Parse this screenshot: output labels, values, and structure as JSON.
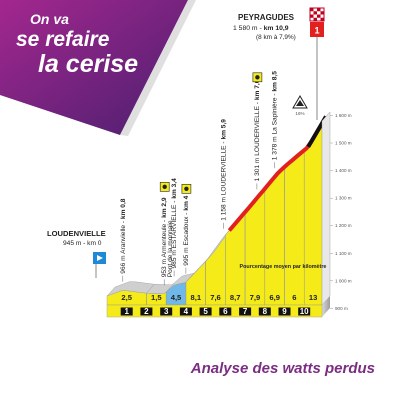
{
  "brand": {
    "line1": "On va",
    "line2": "se refaire",
    "line3": "la cerise"
  },
  "finish": {
    "name": "PEYRAGUDES",
    "alt_km_prefix": "1 580 m - ",
    "alt_km_bold": "km 10,9",
    "note": "(8 km à 7,9%)",
    "stage_number": "1"
  },
  "start": {
    "name": "LOUDENVIELLE",
    "detail": "945 m - km 0"
  },
  "waypoints": [
    {
      "text": "966 m Aranvielle - ",
      "bold": "km 0,8",
      "km": 0.8,
      "alt": 966,
      "sprint": false
    },
    {
      "text": "953 m Armenteule - ",
      "bold": "km 2,9",
      "sub": "Pont de la monnaie",
      "km": 2.9,
      "alt": 953,
      "sprint": true
    },
    {
      "text": "985 m ESTARVIELLE - ",
      "bold": "km 3,4",
      "km": 3.4,
      "alt": 985,
      "sprint": false
    },
    {
      "text": "995 m Escadoux - ",
      "bold": "km 4",
      "km": 4.0,
      "alt": 995,
      "sprint": true
    },
    {
      "text": "1 158 m LOUDERVIELLE - ",
      "bold": "km 5,9",
      "km": 5.9,
      "alt": 1158,
      "sprint": false
    },
    {
      "text": "1 301 m LOUDERVIELLE - ",
      "bold": "km 7,6",
      "km": 7.6,
      "alt": 1301,
      "sprint": true
    },
    {
      "text": "1 378 m La Sapinière - ",
      "bold": "km 8,5",
      "km": 8.5,
      "alt": 1378,
      "sprint": false
    }
  ],
  "summit_pct": "16%",
  "caption": "Pourcentage moyen par kilomètre",
  "footer": "Analyse des watts perdus",
  "chart_data": {
    "type": "area",
    "title": "",
    "xlabel": "",
    "ylabel": "",
    "x_unit": "km",
    "y_unit": "m",
    "xlim": [
      0,
      10.9
    ],
    "ylim": [
      900,
      1600
    ],
    "y_ticks": [
      {
        "value": 1600,
        "label": "1 600 m"
      },
      {
        "value": 1500,
        "label": "1 500 m"
      },
      {
        "value": 1400,
        "label": "1 400 m"
      },
      {
        "value": 1300,
        "label": "1 300 m"
      },
      {
        "value": 1200,
        "label": "1 200 m"
      },
      {
        "value": 1100,
        "label": "1 100 m"
      },
      {
        "value": 1000,
        "label": "1 000 m"
      },
      {
        "value": 900,
        "label": "900 m"
      }
    ],
    "km_markers": [
      "1",
      "2",
      "3",
      "4",
      "5",
      "6",
      "7",
      "8",
      "9",
      "10"
    ],
    "segments": [
      {
        "label": "2,5",
        "start": 0,
        "end": 2,
        "color": "#f5eb18"
      },
      {
        "label": "1,5",
        "start": 2,
        "end": 3,
        "color": "#f5eb18"
      },
      {
        "label": "4,5",
        "start": 3,
        "end": 4,
        "color": "#6fb8e8"
      },
      {
        "label": "8,1",
        "start": 4,
        "end": 5,
        "color": "#f5eb18"
      },
      {
        "label": "7,6",
        "start": 5,
        "end": 6,
        "color": "#f5eb18"
      },
      {
        "label": "8,7",
        "start": 6,
        "end": 7,
        "color": "#f5eb18"
      },
      {
        "label": "7,9",
        "start": 7,
        "end": 8,
        "color": "#f5eb18"
      },
      {
        "label": "6,9",
        "start": 8,
        "end": 9,
        "color": "#f5eb18"
      },
      {
        "label": "6",
        "start": 9,
        "end": 10,
        "color": "#f5eb18"
      },
      {
        "label": "13",
        "start": 10,
        "end": 10.9,
        "color": "#f5eb18"
      }
    ],
    "profile": [
      {
        "x": 0,
        "y": 945
      },
      {
        "x": 0.8,
        "y": 966
      },
      {
        "x": 2.0,
        "y": 955
      },
      {
        "x": 2.9,
        "y": 953
      },
      {
        "x": 3.4,
        "y": 985
      },
      {
        "x": 4.0,
        "y": 995
      },
      {
        "x": 5.0,
        "y": 1070
      },
      {
        "x": 5.9,
        "y": 1158
      },
      {
        "x": 7.0,
        "y": 1250
      },
      {
        "x": 7.6,
        "y": 1301
      },
      {
        "x": 8.5,
        "y": 1378
      },
      {
        "x": 9.0,
        "y": 1410
      },
      {
        "x": 10.0,
        "y": 1470
      },
      {
        "x": 10.9,
        "y": 1580
      }
    ],
    "hard_section": {
      "start": 6.0,
      "end": 10.9,
      "color": "#e2201f"
    }
  }
}
